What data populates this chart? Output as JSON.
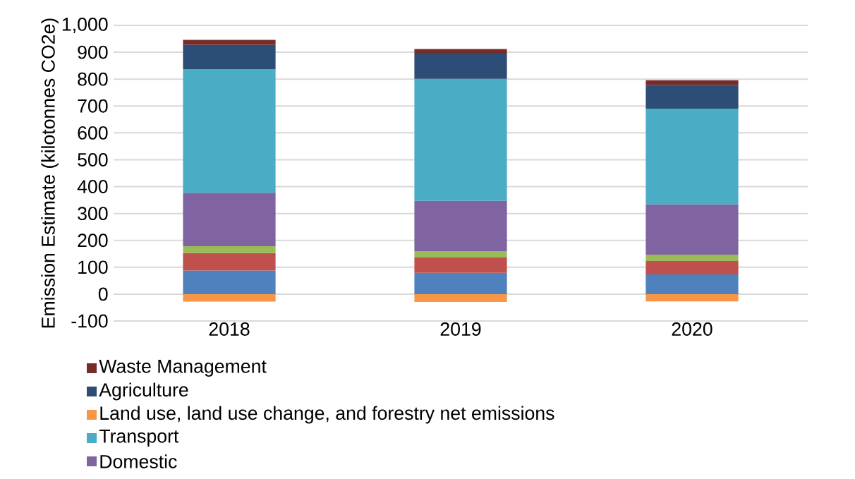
{
  "chart_data": {
    "type": "bar",
    "stacked": true,
    "ylabel": "Emission Estimate (kilotonnes CO2e)",
    "categories": [
      "2018",
      "2019",
      "2020"
    ],
    "series": [
      {
        "color": "#4f81bd",
        "values": [
          88,
          79,
          73
        ]
      },
      {
        "color": "#c0504d",
        "values": [
          65,
          57,
          50
        ]
      },
      {
        "color": "#9bbb59",
        "values": [
          25,
          24,
          24
        ]
      },
      {
        "name": "Domestic",
        "color": "#8064a2",
        "values": [
          199,
          187,
          187
        ]
      },
      {
        "name": "Transport",
        "color": "#4bacc6",
        "values": [
          460,
          454,
          356
        ]
      },
      {
        "name": "Land use, land use change, and forestry net emissions",
        "color": "#f79646",
        "values": [
          -28,
          -29,
          -27
        ]
      },
      {
        "name": "Agriculture",
        "color": "#2c4d75",
        "values": [
          91,
          94,
          89
        ]
      },
      {
        "name": "Waste Management",
        "color": "#772c2a",
        "values": [
          18,
          17,
          17
        ]
      }
    ],
    "ylim": [
      -100,
      1000
    ],
    "yticks": [
      -100,
      0,
      100,
      200,
      300,
      400,
      500,
      600,
      700,
      800,
      900,
      {
        "value": 1000,
        "label": "1,000"
      }
    ],
    "grid": "y",
    "legend": "bottom"
  }
}
